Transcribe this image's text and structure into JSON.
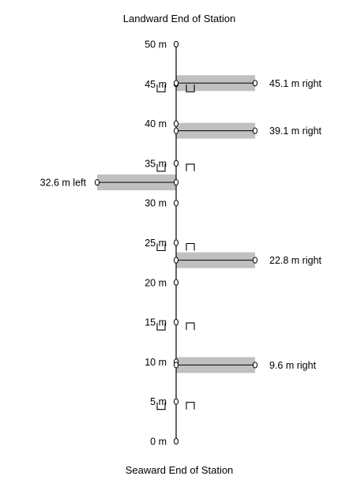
{
  "title_top": "Landward End of Station",
  "title_bottom": "Seaward End of Station",
  "axis": {
    "min": 0,
    "max": 50,
    "unit": "m"
  },
  "ticks": [
    {
      "value": 50,
      "label": "50 m"
    },
    {
      "value": 45,
      "label": "45 m"
    },
    {
      "value": 40,
      "label": "40 m"
    },
    {
      "value": 35,
      "label": "35 m"
    },
    {
      "value": 30,
      "label": "30 m"
    },
    {
      "value": 25,
      "label": "25 m"
    },
    {
      "value": 20,
      "label": "20 m"
    },
    {
      "value": 15,
      "label": "15 m"
    },
    {
      "value": 10,
      "label": "10 m"
    },
    {
      "value": 5,
      "label": "5 m"
    },
    {
      "value": 0,
      "label": "0 m"
    }
  ],
  "transects": [
    {
      "position": 45.1,
      "side": "right",
      "label": "45.1 m right"
    },
    {
      "position": 39.1,
      "side": "right",
      "label": "39.1 m right"
    },
    {
      "position": 32.6,
      "side": "left",
      "label": "32.6 m left"
    },
    {
      "position": 22.8,
      "side": "right",
      "label": "22.8 m right"
    },
    {
      "position": 9.6,
      "side": "right",
      "label": "9.6 m right"
    }
  ],
  "quadrats": [
    {
      "position": 45,
      "left": "down",
      "right": "down"
    },
    {
      "position": 35,
      "left": "down",
      "right": "up"
    },
    {
      "position": 25,
      "left": "down",
      "right": "up"
    },
    {
      "position": 15,
      "left": "down",
      "right": "up"
    },
    {
      "position": 5,
      "left": "down",
      "right": "up"
    }
  ],
  "colors": {
    "band": "#c0c0c0",
    "line": "#000000"
  }
}
